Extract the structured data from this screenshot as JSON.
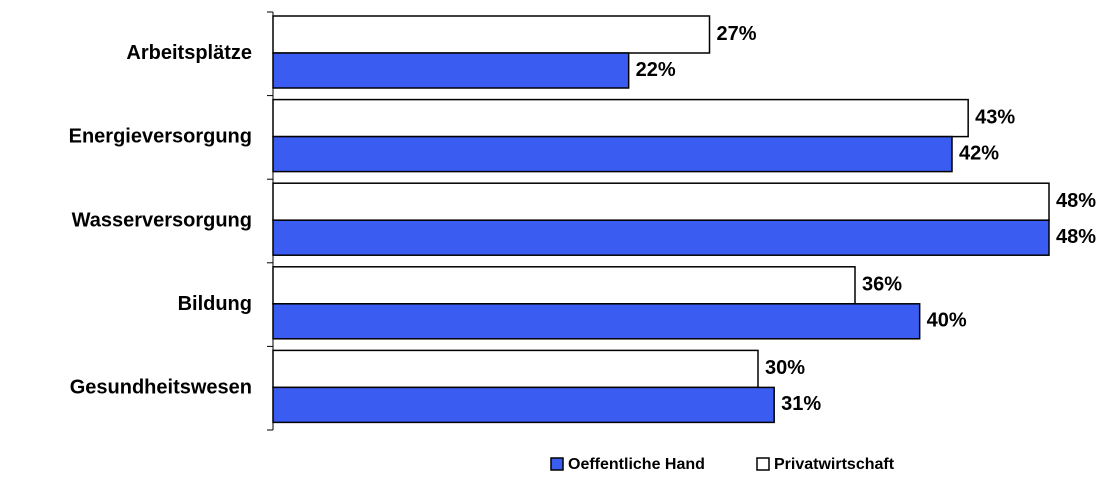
{
  "chart_data": {
    "type": "bar",
    "orientation": "horizontal",
    "categories": [
      "Arbeitsplätze",
      "Energieversorgung",
      "Wasserversorgung",
      "Bildung",
      "Gesundheitswesen"
    ],
    "series": [
      {
        "name": "Oeffentliche Hand",
        "color": "#3b5cf0",
        "values": [
          22,
          42,
          48,
          40,
          31
        ],
        "value_labels": [
          "22%",
          "42%",
          "48%",
          "40%",
          "31%"
        ]
      },
      {
        "name": "Privatwirtschaft",
        "color": "#ffffff",
        "values": [
          27,
          43,
          48,
          36,
          30
        ],
        "value_labels": [
          "27%",
          "43%",
          "48%",
          "36%",
          "30%"
        ]
      }
    ],
    "legend": "bottom"
  }
}
